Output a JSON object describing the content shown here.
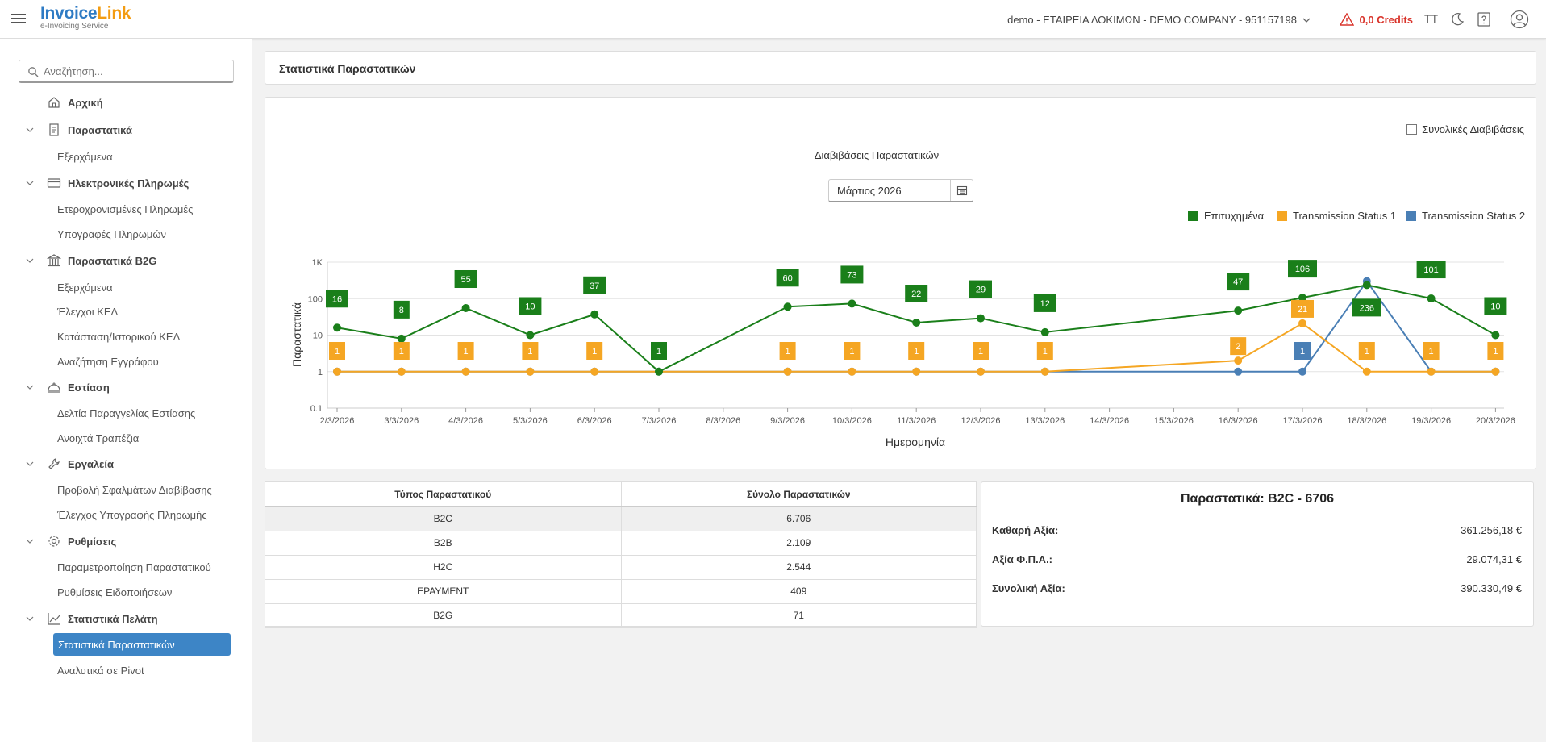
{
  "header": {
    "logo_main": "Invoice",
    "logo_accent": "Link",
    "logo_sub": "e-Invoicing Service",
    "company": "demo - ΕΤΑΙΡΕΙΑ ΔΟΚΙΜΩΝ - DEMO COMPANY - 951157198",
    "credits": "0,0 Credits",
    "font_size_label": "TT"
  },
  "sidebar": {
    "search_placeholder": "Αναζήτηση...",
    "home": "Αρχική",
    "groups": [
      {
        "label": "Παραστατικά",
        "items": [
          "Εξερχόμενα"
        ]
      },
      {
        "label": "Ηλεκτρονικές Πληρωμές",
        "items": [
          "Ετεροχρονισμένες Πληρωμές",
          "Υπογραφές Πληρωμών"
        ]
      },
      {
        "label": "Παραστατικά B2G",
        "items": [
          "Εξερχόμενα",
          "Έλεγχοι ΚΕΔ",
          "Κατάσταση/Ιστορικού ΚΕΔ",
          "Αναζήτηση Εγγράφου"
        ]
      },
      {
        "label": "Εστίαση",
        "items": [
          "Δελτία Παραγγελίας Εστίασης",
          "Ανοιχτά Τραπέζια"
        ]
      },
      {
        "label": "Εργαλεία",
        "items": [
          "Προβολή Σφαλμάτων Διαβίβασης",
          "Έλεγχος Υπογραφής Πληρωμής"
        ]
      },
      {
        "label": "Ρυθμίσεις",
        "items": [
          "Παραμετροποίηση Παραστατικού",
          "Ρυθμίσεις Ειδοποιήσεων"
        ]
      },
      {
        "label": "Στατιστικά Πελάτη",
        "items": [
          "Στατιστικά Παραστατικών",
          "Αναλυτικά σε Pivot"
        ]
      }
    ]
  },
  "page": {
    "title": "Στατιστικά Παραστατικών",
    "total_checkbox_label": "Συνολικές Διαβιβάσεις",
    "date_value": "Μάρτιος 2026"
  },
  "chart_data": {
    "type": "line",
    "title": "Διαβιβάσεις Παραστατικών",
    "xlabel": "Ημερομηνία",
    "ylabel": "Παραστατικά",
    "y_scale": "log",
    "ylim": [
      0.1,
      1000
    ],
    "y_ticks": [
      "0.1",
      "1",
      "10",
      "100",
      "1K"
    ],
    "grid": true,
    "legend_position": "top-right",
    "categories": [
      "2/3/2026",
      "3/3/2026",
      "4/3/2026",
      "5/3/2026",
      "6/3/2026",
      "7/3/2026",
      "8/3/2026",
      "9/3/2026",
      "10/3/2026",
      "11/3/2026",
      "12/3/2026",
      "13/3/2026",
      "14/3/2026",
      "15/3/2026",
      "16/3/2026",
      "17/3/2026",
      "18/3/2026",
      "19/3/2026",
      "20/3/2026"
    ],
    "series": [
      {
        "name": "Επιτυχημένα",
        "color": "#1a7f1a",
        "values": [
          16,
          8,
          55,
          10,
          37,
          1,
          null,
          60,
          73,
          22,
          29,
          12,
          null,
          null,
          47,
          106,
          236,
          101,
          10
        ]
      },
      {
        "name": "Transmission Status 1",
        "color": "#f5a623",
        "values": [
          1,
          1,
          1,
          1,
          1,
          null,
          null,
          1,
          1,
          1,
          1,
          1,
          null,
          null,
          2,
          21,
          1,
          1,
          1
        ]
      },
      {
        "name": "Transmission Status 2",
        "color": "#4a7fb5",
        "values": [
          1,
          1,
          1,
          1,
          1,
          1,
          null,
          1,
          1,
          1,
          1,
          1,
          null,
          null,
          1,
          1,
          300,
          1,
          1
        ]
      }
    ],
    "data_labels": [
      {
        "series": 0,
        "values": [
          16,
          8,
          55,
          10,
          37,
          1,
          null,
          60,
          73,
          22,
          29,
          12,
          null,
          null,
          47,
          106,
          236,
          101,
          10
        ]
      },
      {
        "series": 1,
        "values": [
          1,
          1,
          1,
          1,
          1,
          null,
          null,
          1,
          1,
          1,
          1,
          1,
          null,
          null,
          2,
          21,
          1,
          1,
          1
        ]
      },
      {
        "series": 2,
        "values": [
          null,
          null,
          null,
          null,
          null,
          null,
          null,
          null,
          null,
          null,
          null,
          null,
          null,
          null,
          null,
          1,
          null,
          null,
          null
        ]
      }
    ]
  },
  "table": {
    "headers": [
      "Τύπος Παραστατικού",
      "Σύνολο Παραστατικών"
    ],
    "rows": [
      [
        "B2C",
        "6.706"
      ],
      [
        "B2B",
        "2.109"
      ],
      [
        "H2C",
        "2.544"
      ],
      [
        "EPAYMENT",
        "409"
      ],
      [
        "B2G",
        "71"
      ]
    ]
  },
  "summary": {
    "title": "Παραστατικά:  B2C - 6706",
    "net_label": "Καθαρή Αξία:",
    "net_value": "361.256,18 €",
    "vat_label": "Αξία Φ.Π.Α.:",
    "vat_value": "29.074,31 €",
    "total_label": "Συνολική Αξία:",
    "total_value": "390.330,49 €"
  }
}
